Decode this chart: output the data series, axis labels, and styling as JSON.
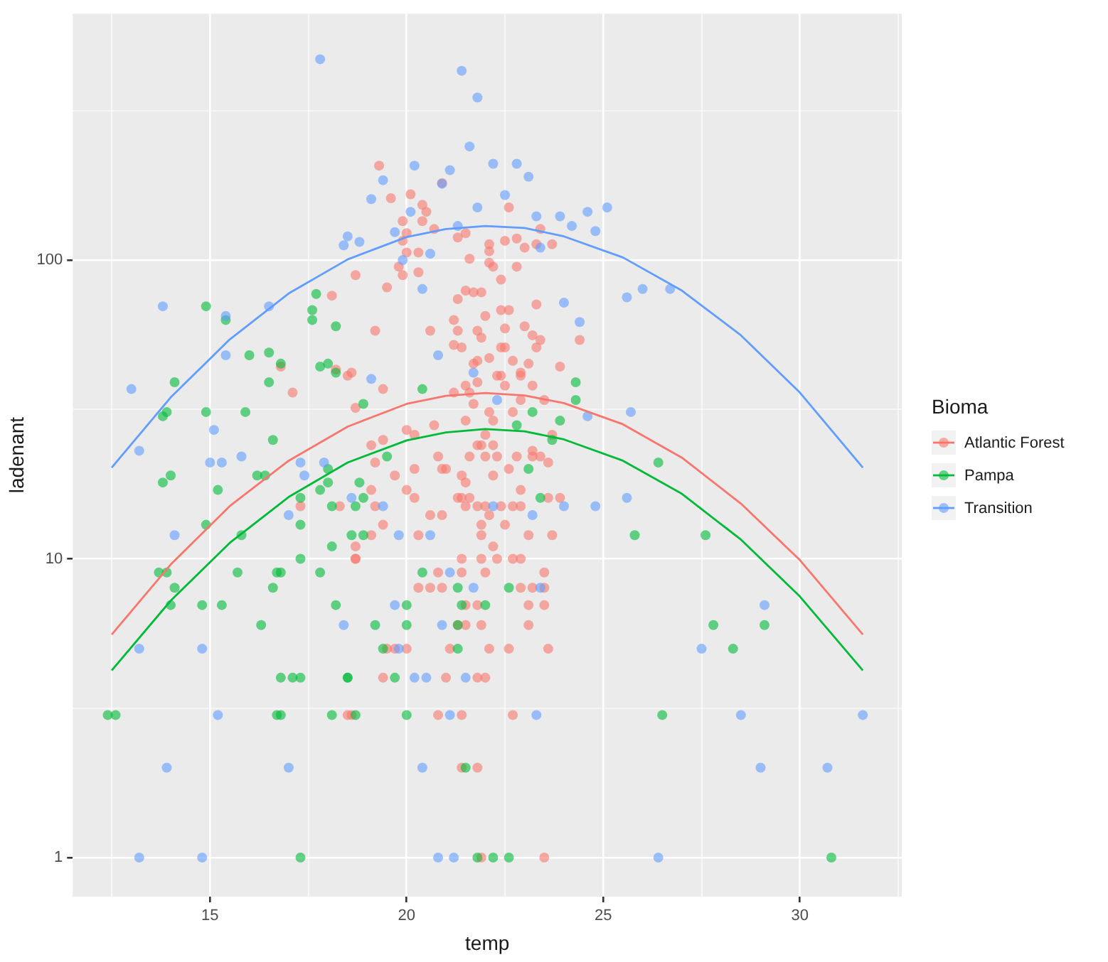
{
  "chart_data": {
    "type": "scatter",
    "xlabel": "temp",
    "ylabel": "ladenant",
    "legend_title": "Bioma",
    "legend": "right",
    "grid": true,
    "log": "y",
    "marker": "circle",
    "xlim": [
      11.51,
      32.59
    ],
    "xticks": [
      {
        "value": 12.5,
        "label": null
      },
      15,
      {
        "value": 17.5,
        "label": null
      },
      20,
      {
        "value": 22.5,
        "label": null
      },
      25,
      {
        "value": 27.5,
        "label": null
      },
      30,
      {
        "value": 32.5,
        "label": null
      }
    ],
    "ylim": [
      0.74,
      668
    ],
    "yticks": [
      1,
      {
        "value": 3.162,
        "label": null
      },
      10,
      {
        "value": 31.62,
        "label": null
      },
      100,
      {
        "value": 316.2,
        "label": null
      }
    ],
    "series": [
      {
        "name": "Atlantic Forest",
        "color": "#f8766d",
        "x": [
          18.1,
          18.7,
          16.8,
          18.2,
          18.5,
          17.1,
          18.7,
          17.3,
          18.3,
          18.7,
          18.5,
          19.3,
          19.6,
          20.9,
          20.1,
          20.4,
          20.5,
          20.4,
          19.9,
          20.0,
          20.7,
          19.9,
          21.3,
          21.5,
          22.1,
          22.5,
          22.8,
          23.0,
          23.3,
          23.4,
          23.7,
          22.6,
          20.0,
          22.1,
          21.6,
          20.3,
          19.8,
          19.9,
          20.3,
          22.1,
          22.2,
          22.8,
          19.5,
          21.5,
          21.7,
          21.9,
          22.4,
          21.3,
          22.0,
          22.4,
          22.6,
          23.3,
          21.2,
          22.5,
          23.0,
          19.2,
          20.6,
          21.3,
          21.8,
          21.9,
          23.2,
          23.4,
          24.4,
          21.2,
          21.4,
          22.4,
          22.5,
          23.3,
          22.1,
          21.8,
          21.7,
          22.7,
          23.1,
          23.9,
          18.6,
          22.3,
          22.4,
          22.9,
          22.9,
          19.4,
          21.5,
          21.8,
          22.5,
          23.2,
          21.2,
          21.6,
          22.9,
          21.7,
          23.5,
          22.7,
          22.1,
          20.7,
          21.5,
          22.2,
          20.0,
          20.2,
          22.0,
          19.4,
          21.8,
          21.9,
          22.2,
          23.7,
          23.2,
          19.1,
          20.8,
          21.6,
          22.0,
          22.3,
          22.8,
          23.2,
          23.4,
          19.2,
          23.6,
          20.2,
          20.9,
          21.0,
          22.6,
          19.7,
          21.4,
          22.2,
          21.5,
          19.1,
          20.0,
          22.9,
          20.2,
          21.3,
          21.4,
          21.6,
          23.6,
          23.9,
          19.2,
          21.5,
          21.8,
          22.0,
          22.4,
          22.7,
          22.9,
          19.4,
          20.6,
          20.9,
          22.1,
          21.9,
          22.5,
          19.1,
          20.3,
          21.9,
          23.1,
          23.7,
          18.7,
          22.2,
          18.7,
          21.4,
          21.9,
          22.3,
          22.7,
          22.9,
          20.8,
          21.4,
          22.0,
          23.5,
          20.3,
          20.6,
          20.9,
          22.9,
          23.2,
          23.5,
          21.5,
          21.8,
          23.1,
          23.5,
          21.3,
          21.5,
          21.9,
          23.1,
          19.5,
          19.7,
          20.0,
          21.1,
          22.1,
          22.6,
          23.6,
          19.4,
          21.0,
          21.8,
          22.0,
          18.6,
          20.8,
          21.4,
          22.7,
          21.4,
          21.8,
          21.9,
          23.5
        ],
        "values": [
          76,
          89,
          44,
          43,
          41,
          36,
          32,
          15,
          15,
          10,
          3,
          207,
          161,
          181,
          166,
          153,
          145,
          135,
          135,
          123,
          127,
          116,
          119,
          123,
          113,
          116,
          118,
          110,
          113,
          127,
          113,
          150,
          106,
          107,
          101,
          106,
          95,
          89,
          91,
          98,
          95,
          95,
          81,
          79,
          78,
          78,
          86,
          74,
          65,
          68,
          68,
          71,
          63,
          59,
          60,
          58,
          58,
          58,
          58,
          55,
          56,
          54,
          54,
          52,
          51,
          51,
          51,
          51,
          47,
          46,
          45,
          46,
          45,
          44,
          42,
          41,
          41,
          42,
          41,
          37,
          38,
          39,
          38,
          38,
          36,
          36,
          34,
          33,
          34,
          31,
          31,
          28,
          29,
          29,
          27,
          26,
          26,
          25,
          24,
          24,
          24,
          26,
          23,
          24,
          22,
          22,
          22,
          22,
          22,
          22,
          22,
          21,
          21,
          20,
          20,
          20,
          20,
          19,
          19,
          19,
          18,
          17,
          17,
          17,
          16,
          16,
          16,
          16,
          16,
          16,
          15,
          15,
          15,
          15,
          15,
          15,
          15,
          13,
          14,
          14,
          14,
          13,
          13,
          12,
          12,
          12,
          12,
          12,
          11,
          11,
          10,
          10,
          10,
          10,
          10,
          10,
          9,
          9,
          9,
          9,
          8,
          8,
          8,
          8,
          8,
          8,
          7,
          7,
          7,
          7,
          6,
          6,
          6,
          6,
          5,
          5,
          5,
          5,
          5,
          5,
          5,
          4,
          4,
          4,
          4,
          3,
          3,
          3,
          3,
          2,
          2,
          1,
          1
        ]
      },
      {
        "name": "Pampa",
        "color": "#00ba38",
        "x": [
          14.9,
          15.4,
          17.6,
          17.6,
          17.7,
          18.2,
          16.5,
          16.0,
          16.5,
          16.8,
          17.8,
          18.0,
          18.2,
          14.1,
          13.9,
          13.8,
          14.9,
          15.9,
          16.6,
          13.8,
          14.0,
          15.2,
          14.9,
          15.8,
          16.4,
          16.2,
          17.3,
          17.3,
          17.3,
          17.8,
          18.0,
          18.0,
          18.1,
          18.1,
          17.8,
          18.2,
          13.7,
          13.9,
          14.1,
          14.0,
          14.8,
          15.3,
          15.7,
          16.6,
          16.7,
          16.8,
          16.3,
          16.8,
          17.1,
          17.3,
          18.5,
          12.4,
          12.6,
          16.7,
          16.8,
          18.1,
          17.3,
          19.5,
          23.1,
          18.8,
          18.9,
          23.4,
          18.6,
          18.9,
          18.7,
          20.4,
          21.3,
          22.6,
          20.0,
          21.4,
          22.0,
          19.2,
          20.0,
          21.3,
          19.4,
          21.3,
          18.5,
          19.7,
          18.7,
          20.0,
          21.5,
          21.8,
          22.2,
          22.6,
          20.4,
          18.9,
          24.3,
          24.3,
          23.2,
          23.9,
          22.8,
          23.7,
          26.4,
          25.8,
          27.6,
          27.8,
          29.1,
          28.3,
          26.5,
          30.8
        ],
        "values": [
          70,
          63,
          68,
          63,
          77,
          60,
          49,
          48,
          39,
          45,
          44,
          45,
          42,
          39,
          31,
          30,
          31,
          31,
          25,
          18,
          19,
          17,
          13,
          12,
          19,
          19,
          16,
          13,
          10,
          17,
          20,
          18,
          15,
          11,
          9,
          7,
          9,
          9,
          8,
          7,
          7,
          7,
          9,
          8,
          9,
          9,
          6,
          4,
          4,
          4,
          4,
          3,
          3,
          3,
          3,
          3,
          1,
          22,
          20,
          18,
          16,
          16,
          12,
          12,
          15,
          9,
          8,
          8,
          7,
          7,
          7,
          6,
          6,
          6,
          5,
          5,
          4,
          4,
          3,
          3,
          2,
          1,
          1,
          1,
          37,
          33,
          39,
          34,
          31,
          29,
          28,
          25,
          21,
          12,
          12,
          6,
          6,
          5,
          3,
          1
        ]
      },
      {
        "name": "Transition",
        "color": "#619cff",
        "x": [
          17.8,
          21.4,
          21.8,
          21.6,
          13.8,
          13.0,
          13.2,
          15.4,
          15.4,
          15.8,
          15.3,
          16.5,
          15.1,
          15.0,
          14.1,
          13.2,
          14.8,
          13.9,
          13.2,
          14.8,
          15.2,
          17.0,
          18.5,
          18.4,
          18.8,
          18.4,
          17.3,
          17.4,
          17.0,
          18.6,
          17.9,
          19.1,
          19.4,
          19.7,
          19.9,
          20.1,
          20.2,
          20.6,
          20.9,
          21.1,
          21.3,
          21.8,
          22.2,
          22.5,
          22.8,
          23.1,
          23.3,
          23.4,
          23.9,
          24.2,
          24.6,
          24.0,
          24.4,
          24.8,
          25.1,
          25.6,
          26.0,
          26.7,
          24.6,
          24.8,
          24.0,
          23.2,
          20.4,
          20.8,
          21.7,
          22.3,
          19.1,
          19.4,
          19.8,
          20.6,
          22.2,
          21.1,
          21.7,
          23.4,
          19.7,
          19.8,
          20.2,
          20.5,
          20.9,
          21.5,
          21.1,
          20.4,
          20.8,
          21.2,
          23.3,
          29.0,
          30.7,
          28.5,
          31.6,
          26.4,
          27.5,
          29.1,
          25.6,
          25.7
        ],
        "values": [
          470,
          430,
          350,
          240,
          70,
          37,
          23,
          65,
          48,
          22,
          21,
          70,
          27,
          21,
          12,
          5,
          5,
          2,
          1,
          1,
          3,
          2,
          120,
          112,
          115,
          6,
          21,
          19,
          14,
          16,
          21,
          160,
          185,
          124,
          100,
          145,
          207,
          105,
          180,
          200,
          130,
          150,
          210,
          165,
          210,
          190,
          140,
          110,
          140,
          130,
          145,
          72,
          62,
          125,
          150,
          75,
          80,
          80,
          30,
          15,
          15,
          14,
          80,
          48,
          42,
          34,
          40,
          15,
          12,
          12,
          15,
          9,
          8,
          8,
          7,
          5,
          4,
          4,
          6,
          4,
          3,
          2,
          1,
          1,
          3,
          2,
          2,
          3,
          3,
          1,
          5,
          7,
          16,
          31
        ]
      },
      {
        "type": "line",
        "marker": "none",
        "color": "#f8766d",
        "x": [
          12.5,
          14,
          15.5,
          17,
          18.5,
          20,
          21,
          22,
          23,
          24,
          25.5,
          27,
          28.5,
          30,
          31.6
        ],
        "values": [
          5.58,
          9.57,
          15.0,
          21.3,
          27.7,
          33.0,
          35.1,
          35.9,
          35.2,
          33.2,
          28.2,
          21.8,
          15.3,
          9.9,
          5.58
        ]
      },
      {
        "type": "line",
        "marker": "none",
        "color": "#00ba38",
        "x": [
          12.5,
          14,
          15.5,
          17,
          18.5,
          20,
          21,
          22,
          23,
          24,
          25.5,
          27,
          28.5,
          30,
          31.6
        ],
        "values": [
          4.23,
          7.24,
          11.3,
          16.1,
          21.0,
          24.9,
          26.5,
          27.2,
          26.7,
          25.1,
          21.3,
          16.5,
          11.6,
          7.48,
          4.23
        ]
      },
      {
        "type": "line",
        "marker": "none",
        "color": "#619cff",
        "x": [
          12.5,
          14,
          15.5,
          17,
          18.5,
          20,
          21,
          22,
          23,
          24,
          25.5,
          27,
          28.5,
          30,
          31.6
        ],
        "values": [
          20.2,
          34.7,
          54.2,
          77.3,
          100.5,
          119.4,
          127,
          130,
          128,
          120,
          102,
          79,
          56,
          36,
          20.2
        ]
      }
    ]
  }
}
